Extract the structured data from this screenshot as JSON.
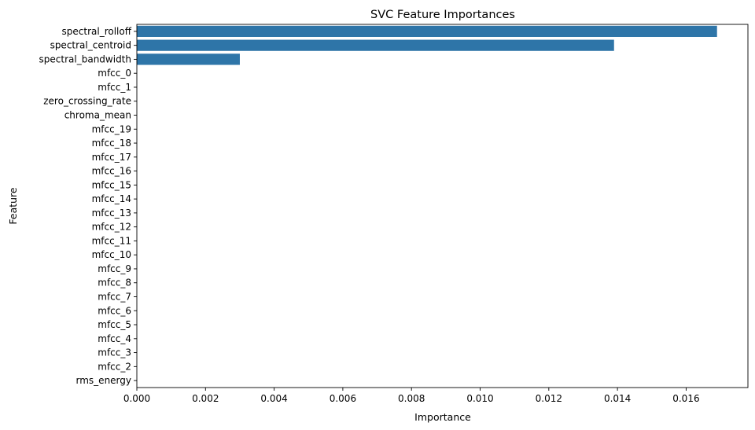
{
  "chart_data": {
    "type": "bar",
    "orientation": "horizontal",
    "title": "SVC Feature Importances",
    "xlabel": "Importance",
    "ylabel": "Feature",
    "xlim": [
      0,
      0.0178
    ],
    "xticks": [
      "0.000",
      "0.002",
      "0.004",
      "0.006",
      "0.008",
      "0.010",
      "0.012",
      "0.014",
      "0.016"
    ],
    "xtick_values": [
      0,
      0.002,
      0.004,
      0.006,
      0.008,
      0.01,
      0.012,
      0.014,
      0.016
    ],
    "grid": false,
    "bar_color": "#2e75a8",
    "categories": [
      "spectral_rolloff",
      "spectral_centroid",
      "spectral_bandwidth",
      "mfcc_0",
      "mfcc_1",
      "zero_crossing_rate",
      "chroma_mean",
      "mfcc_19",
      "mfcc_18",
      "mfcc_17",
      "mfcc_16",
      "mfcc_15",
      "mfcc_14",
      "mfcc_13",
      "mfcc_12",
      "mfcc_11",
      "mfcc_10",
      "mfcc_9",
      "mfcc_8",
      "mfcc_7",
      "mfcc_6",
      "mfcc_5",
      "mfcc_4",
      "mfcc_3",
      "mfcc_2",
      "rms_energy"
    ],
    "values": [
      0.0169,
      0.0139,
      0.003,
      0,
      0,
      0,
      0,
      0,
      0,
      0,
      0,
      0,
      0,
      0,
      0,
      0,
      0,
      0,
      0,
      0,
      0,
      0,
      0,
      0,
      0,
      0
    ]
  }
}
